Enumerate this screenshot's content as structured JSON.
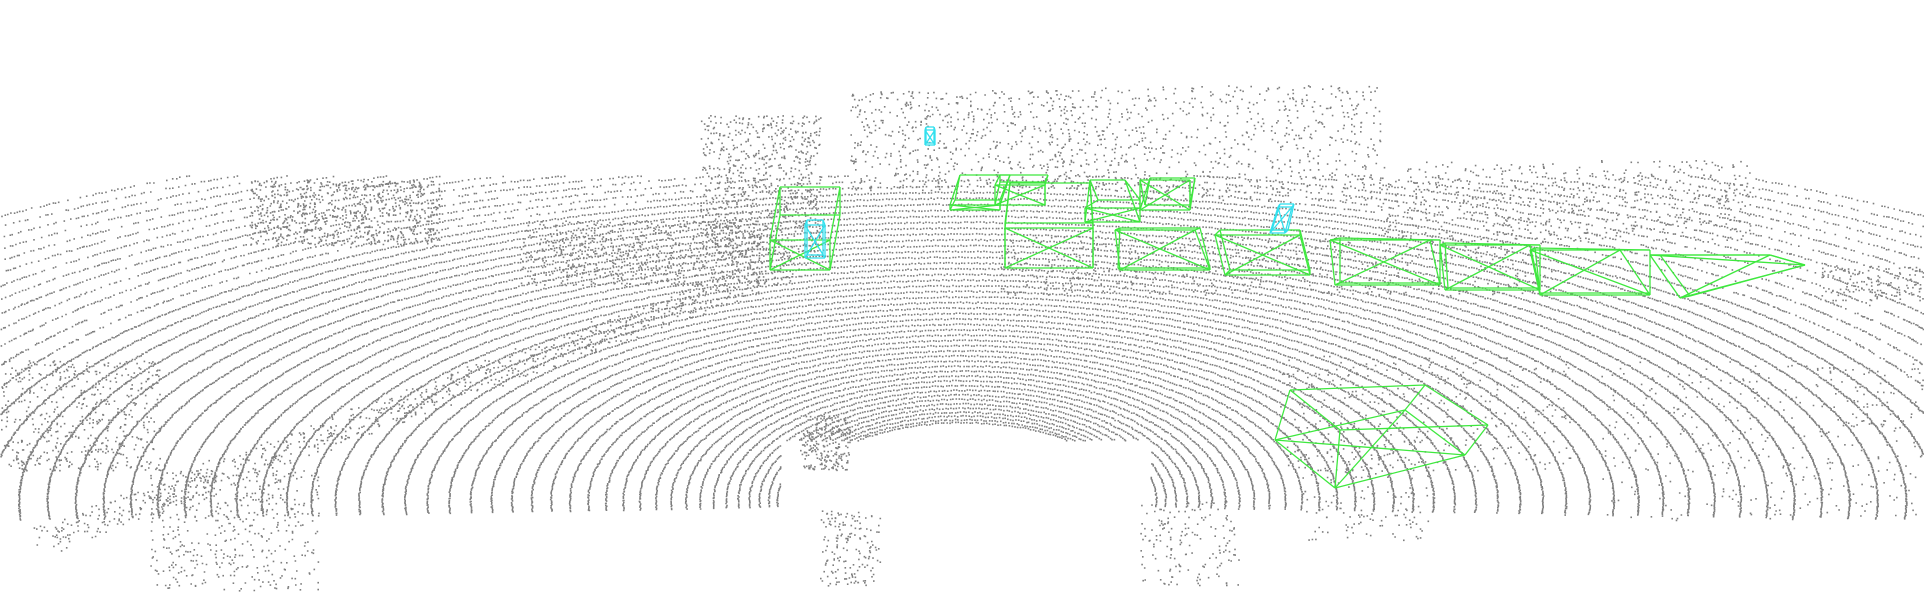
{
  "scene": {
    "kind": "lidar-point-cloud-3d-detections",
    "background_color": "#ffffff",
    "point_color": "#7f7f7f",
    "class_colors": {
      "car": "#3ee83e",
      "pedestrian": "#33e0ee"
    },
    "object_count": {
      "car": 12,
      "pedestrian": 3
    }
  }
}
